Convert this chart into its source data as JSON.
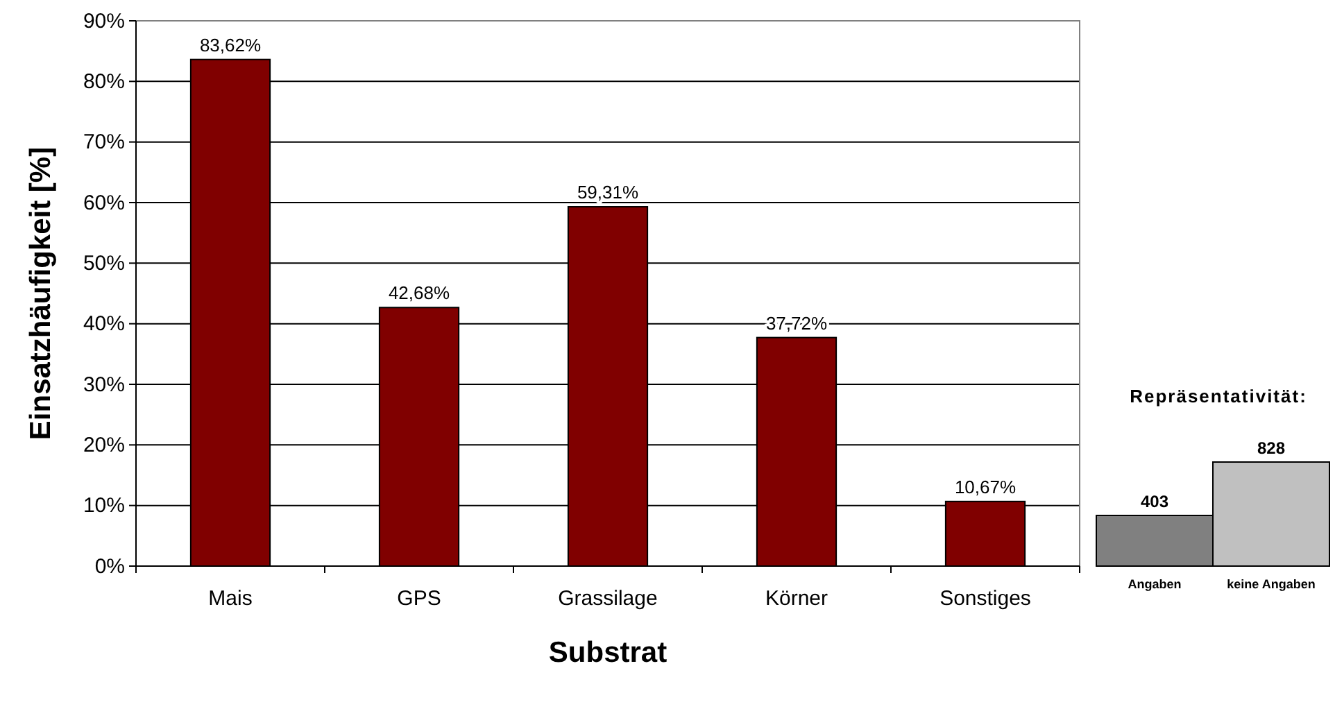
{
  "chart_data": [
    {
      "type": "bar",
      "xlabel": "Substrat",
      "ylabel": "Einsatzhäufigkeit [%]",
      "categories": [
        "Mais",
        "GPS",
        "Grassilage",
        "Körner",
        "Sonstiges"
      ],
      "values": [
        83.62,
        42.68,
        59.31,
        37.72,
        10.67
      ],
      "value_labels": [
        "83,62%",
        "42,68%",
        "59,31%",
        "37,72%",
        "10,67%"
      ],
      "color": "#800000",
      "ylim": [
        0,
        90
      ],
      "yticks": [
        {
          "value": 0,
          "label": "0%"
        },
        {
          "value": 10,
          "label": "10%"
        },
        {
          "value": 20,
          "label": "20%"
        },
        {
          "value": 30,
          "label": "30%"
        },
        {
          "value": 40,
          "label": "40%"
        },
        {
          "value": 50,
          "label": "50%"
        },
        {
          "value": 60,
          "label": "60%"
        },
        {
          "value": 70,
          "label": "70%"
        },
        {
          "value": 80,
          "label": "80%"
        },
        {
          "value": 90,
          "label": "90%"
        }
      ],
      "grid": "y"
    },
    {
      "type": "bar",
      "title": "Repräsentativität:",
      "categories": [
        "Angaben",
        "keine Angaben"
      ],
      "values": [
        403,
        828
      ],
      "colors": [
        "#808080",
        "#c0c0c0"
      ],
      "data_labels": true
    }
  ]
}
